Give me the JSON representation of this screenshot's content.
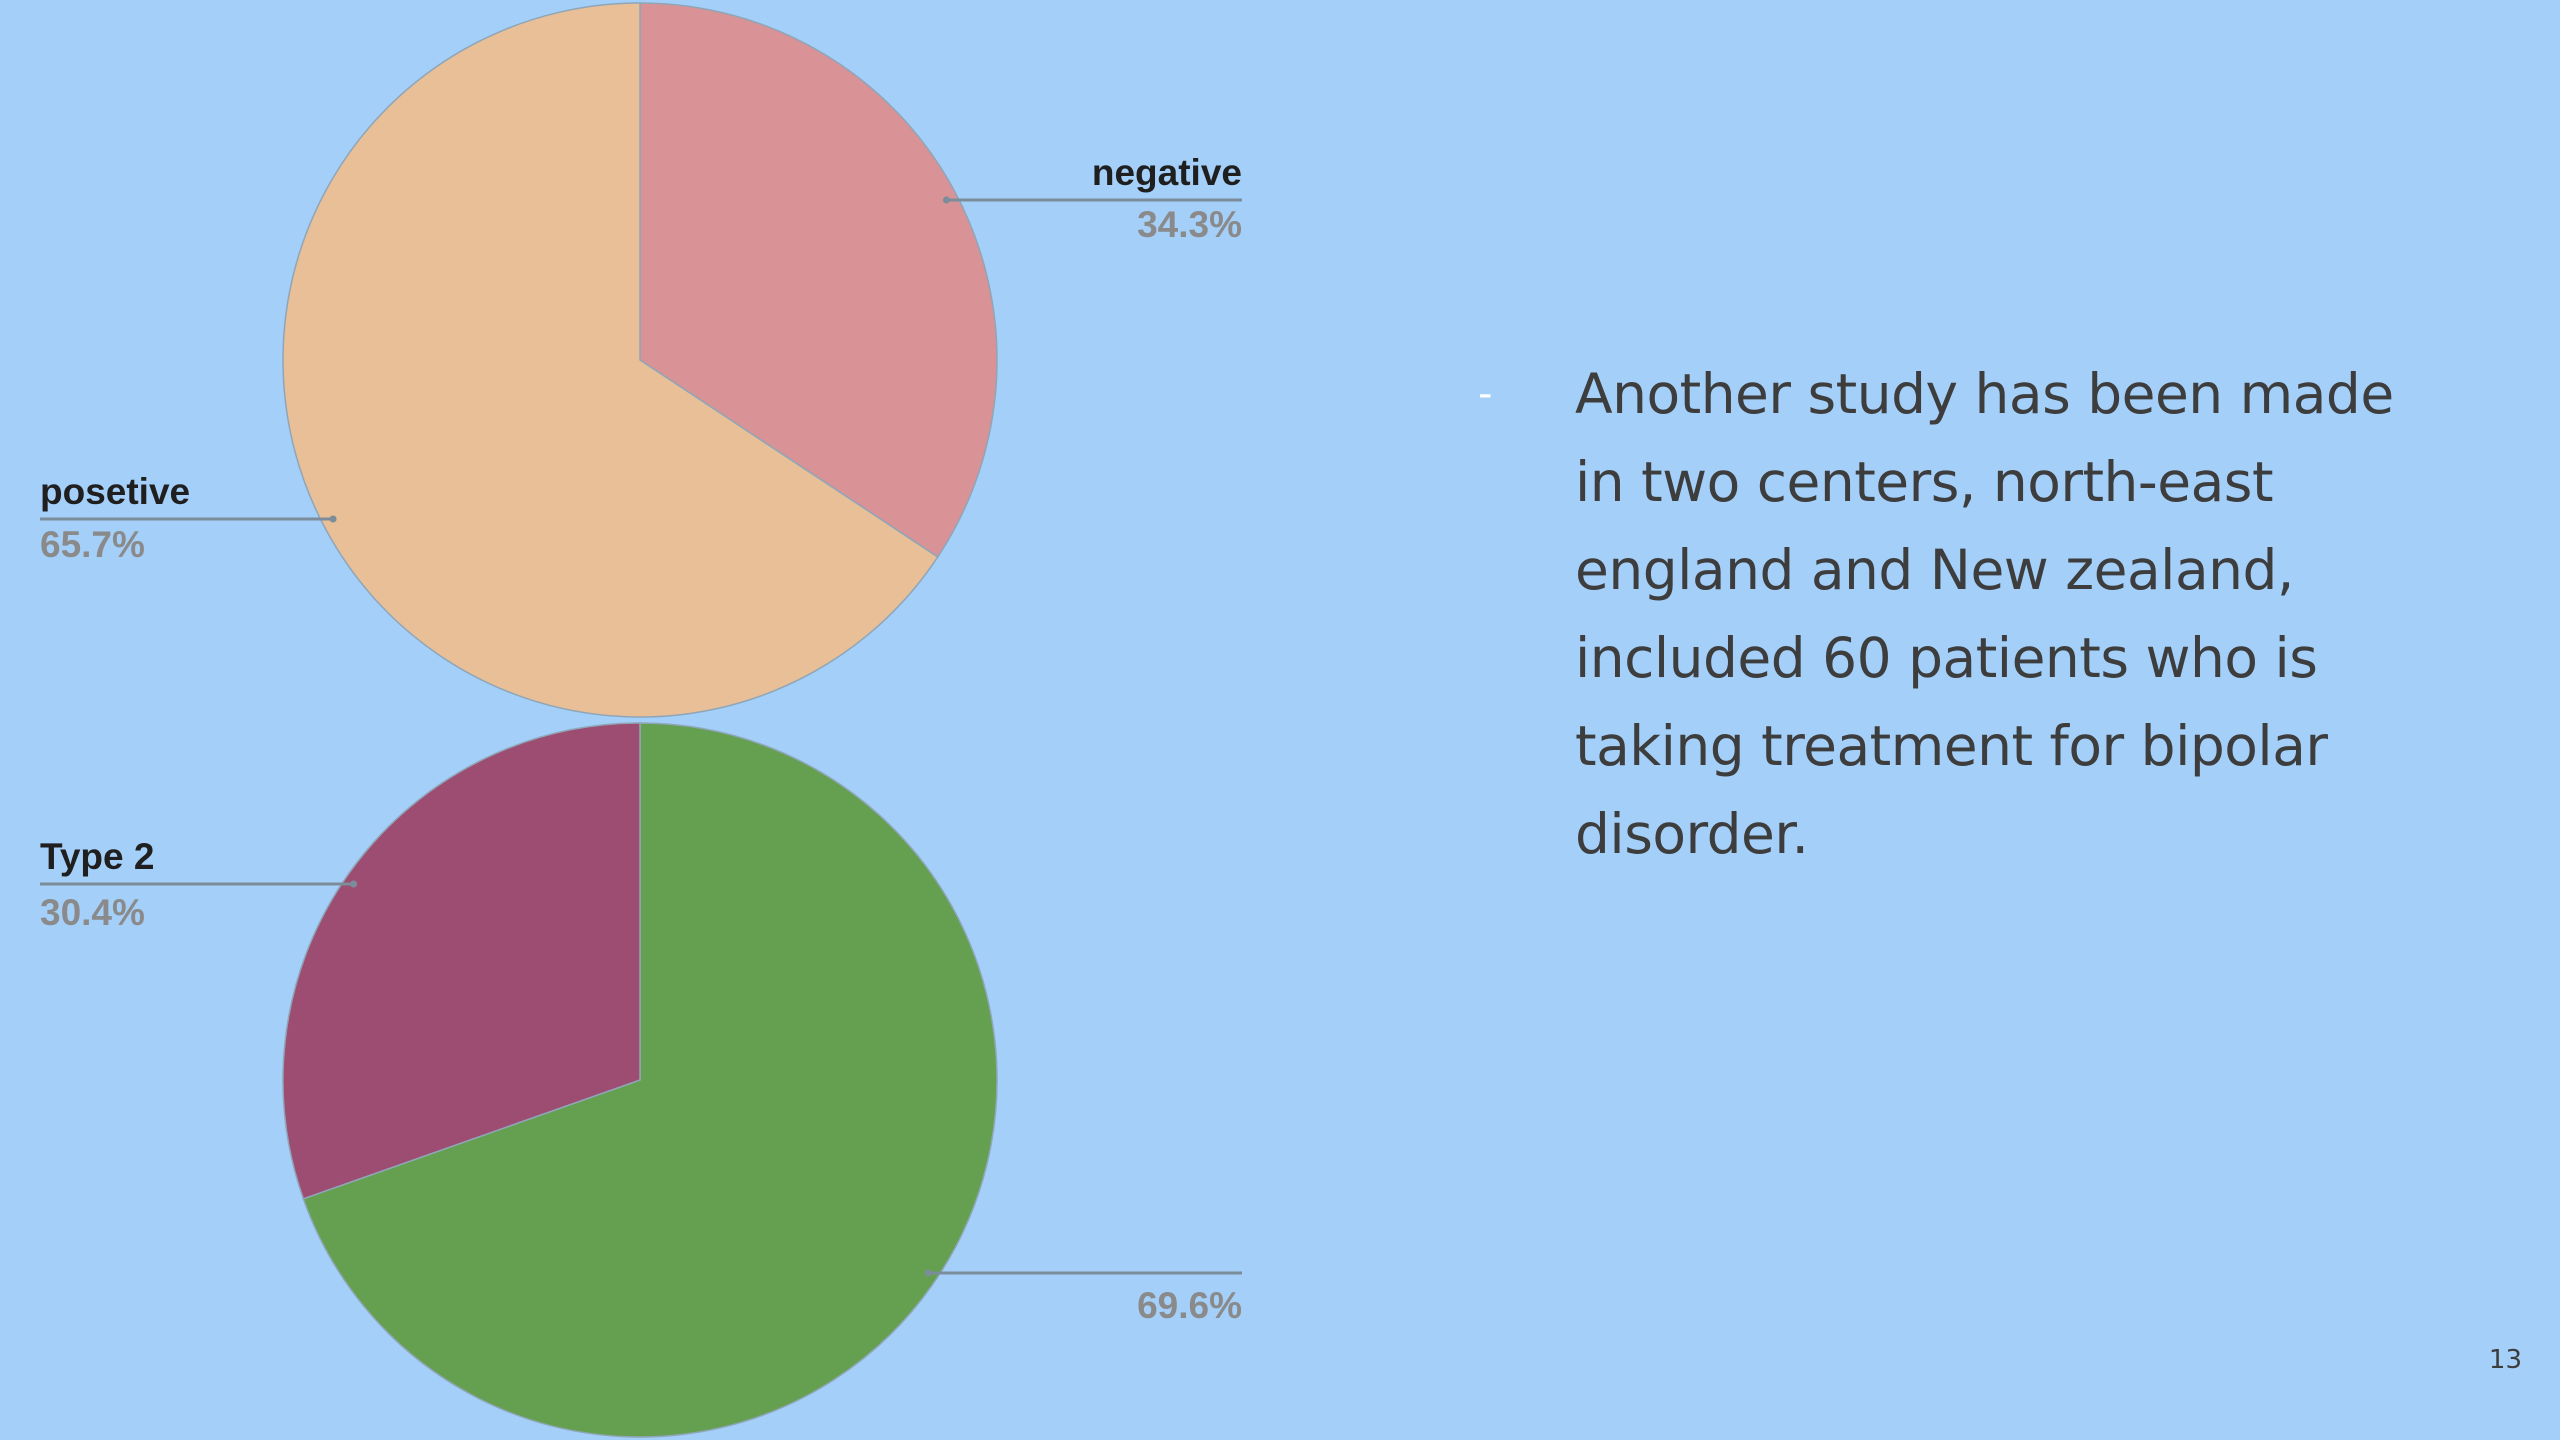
{
  "chart_data": [
    {
      "type": "pie",
      "slices": [
        {
          "label": "negative",
          "value": 34.3,
          "percent_label": "34.3%",
          "color": "#d99295"
        },
        {
          "label": "posetive",
          "value": 65.7,
          "percent_label": "65.7%",
          "color": "#e8bf96"
        }
      ]
    },
    {
      "type": "pie",
      "slices": [
        {
          "label": "",
          "value": 69.6,
          "percent_label": "69.6%",
          "color": "#64a050"
        },
        {
          "label": "Type 2",
          "value": 30.4,
          "percent_label": "30.4%",
          "color": "#9e4d72"
        }
      ]
    }
  ],
  "bullet": {
    "marker": "-",
    "text": "Another study has been made in two centers, north-east england and New zealand, included 60 patients who is taking treatment for bipolar disorder."
  },
  "slide_number": "13",
  "colors": {
    "background": "#a4cff9",
    "leader_line": "#7b8d9a",
    "body_text": "#3d3d3d"
  }
}
